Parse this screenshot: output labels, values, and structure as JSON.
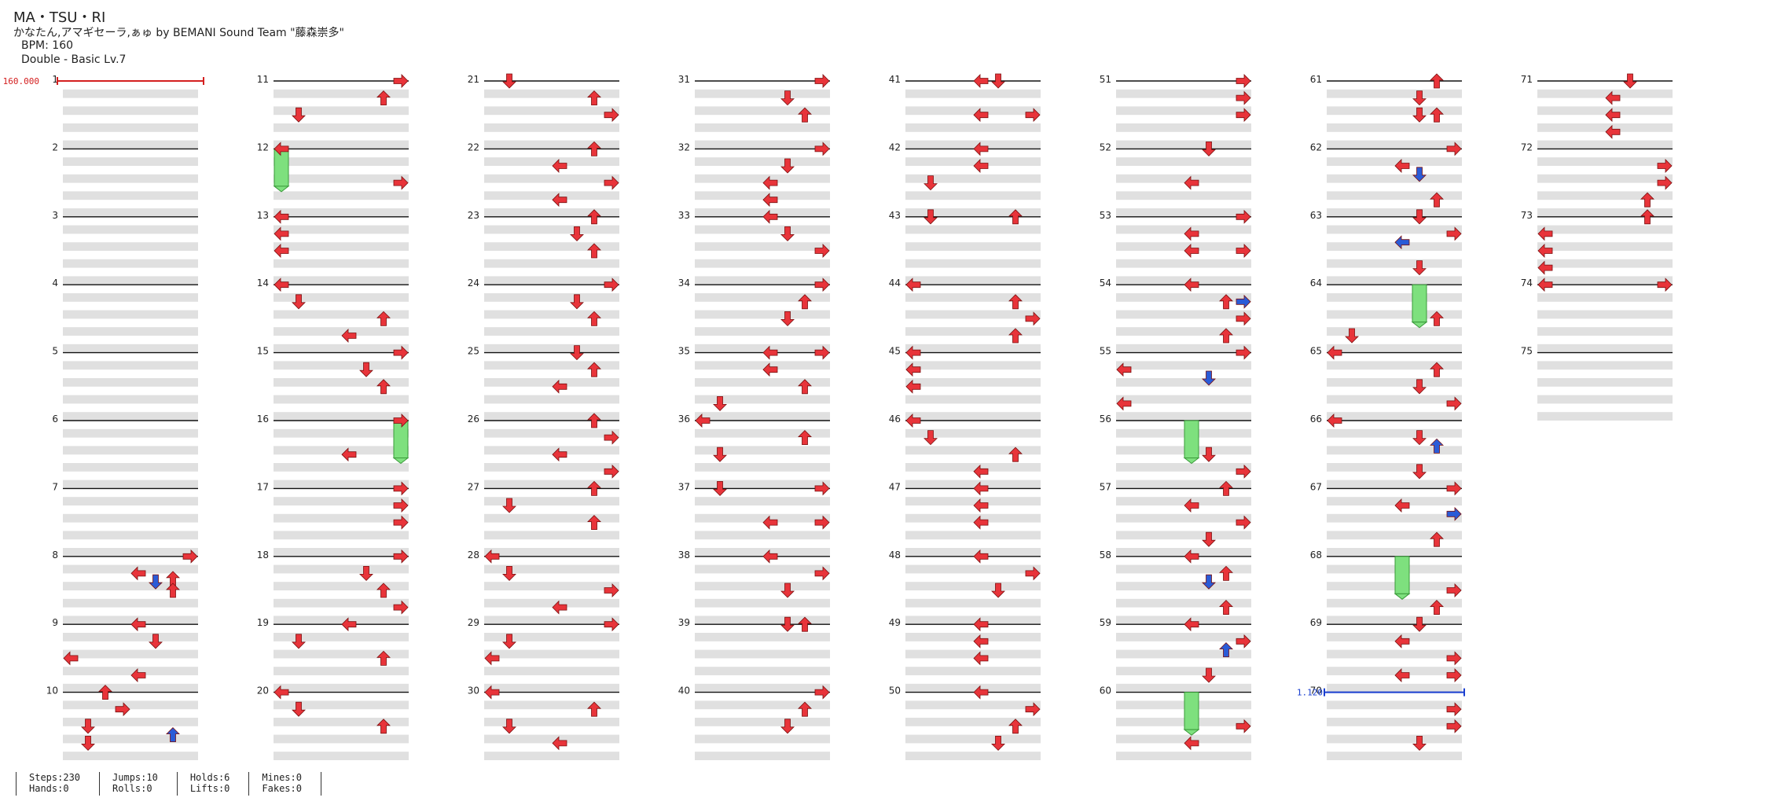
{
  "header": {
    "title": "MA・TSU・RI",
    "artist": "かなたん,アマギセーラ,ぁゅ by BEMANI Sound Team \"藤森崇多\"",
    "bpm": "BPM: 160",
    "chart": "Double - Basic  Lv.7"
  },
  "colors": {
    "tap_arrow": "#e8343a",
    "blue_arrow": "#2a5bd7",
    "hold": "#7ee07e",
    "row_shade": "#e0e0e0",
    "bpm_marker": "#d42020",
    "speed_marker": "#1a3fd0"
  },
  "markers": {
    "bpm_change": {
      "label": "160.000",
      "measure": 1
    },
    "speed_change": {
      "label": "1.120",
      "measure": 70
    }
  },
  "measures": [
    "1",
    "2",
    "3",
    "4",
    "5",
    "6",
    "7",
    "8",
    "9",
    "10",
    "11",
    "12",
    "13",
    "14",
    "15",
    "16",
    "17",
    "18",
    "19",
    "20",
    "21",
    "22",
    "23",
    "24",
    "25",
    "26",
    "27",
    "28",
    "29",
    "30",
    "31",
    "32",
    "33",
    "34",
    "35",
    "36",
    "37",
    "38",
    "39",
    "40",
    "41",
    "42",
    "43",
    "44",
    "45",
    "46",
    "47",
    "48",
    "49",
    "50",
    "51",
    "52",
    "53",
    "54",
    "55",
    "56",
    "57",
    "58",
    "59",
    "60",
    "61",
    "62",
    "63",
    "64",
    "65",
    "66",
    "67",
    "68",
    "69",
    "70",
    "71",
    "72",
    "73",
    "74",
    "75"
  ],
  "notes": [
    {
      "m": 8,
      "b": 0,
      "c": "R"
    },
    {
      "m": 8,
      "b": 1,
      "c": "L"
    },
    {
      "m": 8,
      "b": 1.5,
      "c": "Db"
    },
    {
      "m": 8,
      "b": 1.3,
      "c": "U"
    },
    {
      "m": 8,
      "b": 2,
      "c": "U"
    },
    {
      "m": 9,
      "b": 0,
      "c": "L"
    },
    {
      "m": 9,
      "b": 1,
      "c": "D"
    },
    {
      "m": 9,
      "b": 2,
      "c": "l"
    },
    {
      "m": 9,
      "b": 3,
      "c": "L"
    },
    {
      "m": 10,
      "b": 0,
      "c": "u"
    },
    {
      "m": 10,
      "b": 1,
      "c": "r"
    },
    {
      "m": 10,
      "b": 2,
      "c": "d"
    },
    {
      "m": 10,
      "b": 2.5,
      "c": "Ub"
    },
    {
      "m": 10,
      "b": 3,
      "c": "d"
    },
    {
      "m": 11,
      "b": 0,
      "c": "R"
    },
    {
      "m": 11,
      "b": 1,
      "c": "U"
    },
    {
      "m": 11,
      "b": 2,
      "c": "d"
    },
    {
      "m": 12,
      "b": 0,
      "c": "l"
    },
    {
      "m": 12,
      "b": 2,
      "c": "R"
    },
    {
      "m": 13,
      "b": 0,
      "c": "l"
    },
    {
      "m": 13,
      "b": 1,
      "c": "l"
    },
    {
      "m": 13,
      "b": 2,
      "c": "l"
    },
    {
      "m": 14,
      "b": 0,
      "c": "l"
    },
    {
      "m": 14,
      "b": 1,
      "c": "d"
    },
    {
      "m": 14,
      "b": 2,
      "c": "U"
    },
    {
      "m": 14,
      "b": 3,
      "c": "L"
    },
    {
      "m": 15,
      "b": 0,
      "c": "R"
    },
    {
      "m": 15,
      "b": 1,
      "c": "D"
    },
    {
      "m": 15,
      "b": 2,
      "c": "U"
    },
    {
      "m": 16,
      "b": 0,
      "c": "R"
    },
    {
      "m": 16,
      "b": 2,
      "c": "L"
    },
    {
      "m": 17,
      "b": 0,
      "c": "R"
    },
    {
      "m": 17,
      "b": 1,
      "c": "R"
    },
    {
      "m": 17,
      "b": 2,
      "c": "R"
    },
    {
      "m": 18,
      "b": 0,
      "c": "R"
    },
    {
      "m": 18,
      "b": 1,
      "c": "D"
    },
    {
      "m": 18,
      "b": 2,
      "c": "U"
    },
    {
      "m": 18,
      "b": 3,
      "c": "R"
    },
    {
      "m": 19,
      "b": 0,
      "c": "L"
    },
    {
      "m": 19,
      "b": 1,
      "c": "d"
    },
    {
      "m": 19,
      "b": 2,
      "c": "U"
    },
    {
      "m": 20,
      "b": 0,
      "c": "l"
    },
    {
      "m": 20,
      "b": 1,
      "c": "d"
    },
    {
      "m": 20,
      "b": 2,
      "c": "U"
    },
    {
      "m": 21,
      "b": 0,
      "c": "d"
    },
    {
      "m": 21,
      "b": 1,
      "c": "U"
    },
    {
      "m": 21,
      "b": 2,
      "c": "R"
    },
    {
      "m": 22,
      "b": 0,
      "c": "U"
    },
    {
      "m": 22,
      "b": 1,
      "c": "L"
    },
    {
      "m": 22,
      "b": 2,
      "c": "R"
    },
    {
      "m": 22,
      "b": 3,
      "c": "L"
    },
    {
      "m": 23,
      "b": 0,
      "c": "U"
    },
    {
      "m": 23,
      "b": 1,
      "c": "D"
    },
    {
      "m": 23,
      "b": 2,
      "c": "U"
    },
    {
      "m": 24,
      "b": 0,
      "c": "R"
    },
    {
      "m": 24,
      "b": 1,
      "c": "D"
    },
    {
      "m": 24,
      "b": 2,
      "c": "U"
    },
    {
      "m": 25,
      "b": 0,
      "c": "D"
    },
    {
      "m": 25,
      "b": 1,
      "c": "U"
    },
    {
      "m": 25,
      "b": 2,
      "c": "L"
    },
    {
      "m": 26,
      "b": 0,
      "c": "U"
    },
    {
      "m": 26,
      "b": 1,
      "c": "R"
    },
    {
      "m": 26,
      "b": 2,
      "c": "L"
    },
    {
      "m": 26,
      "b": 3,
      "c": "R"
    },
    {
      "m": 27,
      "b": 0,
      "c": "U"
    },
    {
      "m": 27,
      "b": 1,
      "c": "d"
    },
    {
      "m": 27,
      "b": 2,
      "c": "U"
    },
    {
      "m": 28,
      "b": 0,
      "c": "l"
    },
    {
      "m": 28,
      "b": 1,
      "c": "d"
    },
    {
      "m": 28,
      "b": 2,
      "c": "R"
    },
    {
      "m": 28,
      "b": 3,
      "c": "L"
    },
    {
      "m": 29,
      "b": 0,
      "c": "R"
    },
    {
      "m": 29,
      "b": 1,
      "c": "d"
    },
    {
      "m": 29,
      "b": 2,
      "c": "l"
    },
    {
      "m": 30,
      "b": 0,
      "c": "l"
    },
    {
      "m": 30,
      "b": 1,
      "c": "U"
    },
    {
      "m": 30,
      "b": 2,
      "c": "d"
    },
    {
      "m": 30,
      "b": 3,
      "c": "L"
    },
    {
      "m": 31,
      "b": 0,
      "c": "R"
    },
    {
      "m": 31,
      "b": 1,
      "c": "D"
    },
    {
      "m": 31,
      "b": 2,
      "c": "U"
    },
    {
      "m": 32,
      "b": 0,
      "c": "R"
    },
    {
      "m": 32,
      "b": 1,
      "c": "D"
    },
    {
      "m": 32,
      "b": 2,
      "c": "L"
    },
    {
      "m": 32,
      "b": 3,
      "c": "L"
    },
    {
      "m": 33,
      "b": 0,
      "c": "L"
    },
    {
      "m": 33,
      "b": 1,
      "c": "D"
    },
    {
      "m": 33,
      "b": 2,
      "c": "R"
    },
    {
      "m": 34,
      "b": 0,
      "c": "R"
    },
    {
      "m": 34,
      "b": 1,
      "c": "U"
    },
    {
      "m": 34,
      "b": 2,
      "c": "D"
    },
    {
      "m": 35,
      "b": 0,
      "c": "R"
    },
    {
      "m": 35,
      "b": 0,
      "c": "L"
    },
    {
      "m": 35,
      "b": 1,
      "c": "L"
    },
    {
      "m": 35,
      "b": 2,
      "c": "U"
    },
    {
      "m": 35,
      "b": 3,
      "c": "d"
    },
    {
      "m": 36,
      "b": 0,
      "c": "l"
    },
    {
      "m": 36,
      "b": 1,
      "c": "U"
    },
    {
      "m": 36,
      "b": 2,
      "c": "d"
    },
    {
      "m": 37,
      "b": 0,
      "c": "d"
    },
    {
      "m": 37,
      "b": 0,
      "c": "R"
    },
    {
      "m": 37,
      "b": 2,
      "c": "R"
    },
    {
      "m": 37,
      "b": 2,
      "c": "L"
    },
    {
      "m": 38,
      "b": 0,
      "c": "L"
    },
    {
      "m": 38,
      "b": 1,
      "c": "R"
    },
    {
      "m": 38,
      "b": 2,
      "c": "D"
    },
    {
      "m": 39,
      "b": 0,
      "c": "D"
    },
    {
      "m": 39,
      "b": 0,
      "c": "U"
    },
    {
      "m": 40,
      "b": 0,
      "c": "R"
    },
    {
      "m": 40,
      "b": 1,
      "c": "U"
    },
    {
      "m": 40,
      "b": 2,
      "c": "D"
    },
    {
      "m": 41,
      "b": 0,
      "c": "L"
    },
    {
      "m": 41,
      "b": 0,
      "c": "D"
    },
    {
      "m": 41,
      "b": 2,
      "c": "R"
    },
    {
      "m": 41,
      "b": 2,
      "c": "L"
    },
    {
      "m": 42,
      "b": 0,
      "c": "L"
    },
    {
      "m": 42,
      "b": 1,
      "c": "L"
    },
    {
      "m": 42,
      "b": 2,
      "c": "d"
    },
    {
      "m": 43,
      "b": 0,
      "c": "d"
    },
    {
      "m": 43,
      "b": 0,
      "c": "U"
    },
    {
      "m": 44,
      "b": 0,
      "c": "l"
    },
    {
      "m": 44,
      "b": 1,
      "c": "U"
    },
    {
      "m": 44,
      "b": 2,
      "c": "R"
    },
    {
      "m": 44,
      "b": 3,
      "c": "U"
    },
    {
      "m": 45,
      "b": 0,
      "c": "l"
    },
    {
      "m": 45,
      "b": 1,
      "c": "l"
    },
    {
      "m": 45,
      "b": 2,
      "c": "l"
    },
    {
      "m": 46,
      "b": 0,
      "c": "l"
    },
    {
      "m": 46,
      "b": 1,
      "c": "d"
    },
    {
      "m": 46,
      "b": 2,
      "c": "U"
    },
    {
      "m": 46,
      "b": 3,
      "c": "L"
    },
    {
      "m": 47,
      "b": 0,
      "c": "L"
    },
    {
      "m": 47,
      "b": 1,
      "c": "L"
    },
    {
      "m": 47,
      "b": 2,
      "c": "L"
    },
    {
      "m": 48,
      "b": 0,
      "c": "L"
    },
    {
      "m": 48,
      "b": 1,
      "c": "R"
    },
    {
      "m": 48,
      "b": 2,
      "c": "D"
    },
    {
      "m": 49,
      "b": 0,
      "c": "L"
    },
    {
      "m": 49,
      "b": 1,
      "c": "L"
    },
    {
      "m": 49,
      "b": 2,
      "c": "L"
    },
    {
      "m": 50,
      "b": 0,
      "c": "L"
    },
    {
      "m": 50,
      "b": 1,
      "c": "R"
    },
    {
      "m": 50,
      "b": 2,
      "c": "U"
    },
    {
      "m": 50,
      "b": 3,
      "c": "D"
    },
    {
      "m": 51,
      "b": 0,
      "c": "R"
    },
    {
      "m": 51,
      "b": 1,
      "c": "R"
    },
    {
      "m": 51,
      "b": 2,
      "c": "R"
    },
    {
      "m": 52,
      "b": 0,
      "c": "D"
    },
    {
      "m": 52,
      "b": 2,
      "c": "L"
    },
    {
      "m": 53,
      "b": 0,
      "c": "R"
    },
    {
      "m": 53,
      "b": 1,
      "c": "L"
    },
    {
      "m": 53,
      "b": 2,
      "c": "R"
    },
    {
      "m": 53,
      "b": 2,
      "c": "L"
    },
    {
      "m": 54,
      "b": 0,
      "c": "L"
    },
    {
      "m": 54,
      "b": 1,
      "c": "U"
    },
    {
      "m": 54,
      "b": 1,
      "c": "Rb"
    },
    {
      "m": 54,
      "b": 2,
      "c": "R"
    },
    {
      "m": 54,
      "b": 3,
      "c": "U"
    },
    {
      "m": 55,
      "b": 0,
      "c": "R"
    },
    {
      "m": 55,
      "b": 1,
      "c": "l"
    },
    {
      "m": 55,
      "b": 1.5,
      "c": "Db"
    },
    {
      "m": 55,
      "b": 3,
      "c": "l"
    },
    {
      "m": 56,
      "b": 2,
      "c": "D"
    },
    {
      "m": 56,
      "b": 3,
      "c": "R"
    },
    {
      "m": 57,
      "b": 0,
      "c": "U"
    },
    {
      "m": 57,
      "b": 1,
      "c": "L"
    },
    {
      "m": 57,
      "b": 2,
      "c": "R"
    },
    {
      "m": 58,
      "b": -1,
      "c": "D"
    },
    {
      "m": 58,
      "b": 0,
      "c": "L"
    },
    {
      "m": 58,
      "b": 1,
      "c": "U"
    },
    {
      "m": 58,
      "b": 1.5,
      "c": "Db"
    },
    {
      "m": 58,
      "b": 3,
      "c": "U"
    },
    {
      "m": 59,
      "b": 0,
      "c": "L"
    },
    {
      "m": 59,
      "b": 1,
      "c": "R"
    },
    {
      "m": 59,
      "b": 1.5,
      "c": "Ub"
    },
    {
      "m": 59,
      "b": 3,
      "c": "D"
    },
    {
      "m": 60,
      "b": 2,
      "c": "R"
    },
    {
      "m": 60,
      "b": 3,
      "c": "L"
    },
    {
      "m": 61,
      "b": 0,
      "c": "U"
    },
    {
      "m": 61,
      "b": 1,
      "c": "D"
    },
    {
      "m": 61,
      "b": 2,
      "c": "D"
    },
    {
      "m": 61,
      "b": 2,
      "c": "U"
    },
    {
      "m": 62,
      "b": 0,
      "c": "R"
    },
    {
      "m": 62,
      "b": 1,
      "c": "L"
    },
    {
      "m": 62,
      "b": 1.5,
      "c": "Db"
    },
    {
      "m": 62,
      "b": 3,
      "c": "U"
    },
    {
      "m": 63,
      "b": 0,
      "c": "D"
    },
    {
      "m": 63,
      "b": 1,
      "c": "R"
    },
    {
      "m": 63,
      "b": 1.5,
      "c": "Lb"
    },
    {
      "m": 63,
      "b": 3,
      "c": "D"
    },
    {
      "m": 64,
      "b": 2,
      "c": "U"
    },
    {
      "m": 64,
      "b": 3,
      "c": "d"
    },
    {
      "m": 65,
      "b": 0,
      "c": "l"
    },
    {
      "m": 65,
      "b": 1,
      "c": "U"
    },
    {
      "m": 65,
      "b": 2,
      "c": "D"
    },
    {
      "m": 65,
      "b": 3,
      "c": "R"
    },
    {
      "m": 66,
      "b": 0,
      "c": "l"
    },
    {
      "m": 66,
      "b": 1,
      "c": "D"
    },
    {
      "m": 66,
      "b": 1.5,
      "c": "Ub"
    },
    {
      "m": 66,
      "b": 3,
      "c": "D"
    },
    {
      "m": 67,
      "b": 0,
      "c": "R"
    },
    {
      "m": 67,
      "b": 1,
      "c": "L"
    },
    {
      "m": 67,
      "b": 1.5,
      "c": "Rb"
    },
    {
      "m": 67,
      "b": 3,
      "c": "U"
    },
    {
      "m": 68,
      "b": 2,
      "c": "R"
    },
    {
      "m": 68,
      "b": 3,
      "c": "U"
    },
    {
      "m": 69,
      "b": 0,
      "c": "D"
    },
    {
      "m": 69,
      "b": 1,
      "c": "L"
    },
    {
      "m": 69,
      "b": 2,
      "c": "R"
    },
    {
      "m": 69,
      "b": 3,
      "c": "L"
    },
    {
      "m": 69,
      "b": 3,
      "c": "R"
    },
    {
      "m": 70,
      "b": 1,
      "c": "R"
    },
    {
      "m": 70,
      "b": 2,
      "c": "R"
    },
    {
      "m": 70,
      "b": 3,
      "c": "D"
    },
    {
      "m": 71,
      "b": 0,
      "c": "D"
    },
    {
      "m": 71,
      "b": 1,
      "c": "L"
    },
    {
      "m": 71,
      "b": 2,
      "c": "L"
    },
    {
      "m": 71,
      "b": 3,
      "c": "L"
    },
    {
      "m": 72,
      "b": 1,
      "c": "R"
    },
    {
      "m": 72,
      "b": 2,
      "c": "R"
    },
    {
      "m": 72,
      "b": 3,
      "c": "U"
    },
    {
      "m": 73,
      "b": 0,
      "c": "U"
    },
    {
      "m": 73,
      "b": 1,
      "c": "l"
    },
    {
      "m": 73,
      "b": 2,
      "c": "l"
    },
    {
      "m": 73,
      "b": 3,
      "c": "l"
    },
    {
      "m": 74,
      "b": 0,
      "c": "l"
    },
    {
      "m": 74,
      "b": 0,
      "c": "R"
    }
  ],
  "holds": [
    {
      "m": 12,
      "b": 0,
      "col": "l",
      "len": 2.2
    },
    {
      "m": 16,
      "b": 0,
      "col": "R",
      "len": 2.2
    },
    {
      "m": 56,
      "b": 0,
      "col": "L",
      "len": 2.2
    },
    {
      "m": 60,
      "b": 0,
      "col": "L",
      "len": 2.2
    },
    {
      "m": 64,
      "b": 0,
      "col": "D",
      "len": 2.2
    },
    {
      "m": 68,
      "b": 0,
      "col": "L",
      "len": 2.2
    }
  ],
  "stats": [
    {
      "a": "Steps:230",
      "b": "Hands:0"
    },
    {
      "a": "Jumps:10",
      "b": "Rolls:0"
    },
    {
      "a": "Holds:6",
      "b": "Lifts:0"
    },
    {
      "a": "Mines:0",
      "b": "Fakes:0"
    }
  ]
}
